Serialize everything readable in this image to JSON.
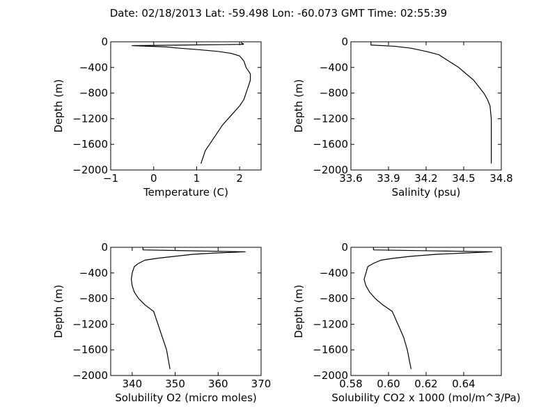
{
  "figure": {
    "suptitle": "Date: 02/18/2013  Lat:  -59.498 Lon:  -60.073  GMT Time: 02:55:39"
  },
  "chart_data": [
    {
      "type": "line",
      "xlabel": "Temperature (C)",
      "ylabel": "Depth (m)",
      "xlim": [
        -1,
        2.5
      ],
      "ylim": [
        -2000,
        0
      ],
      "xticks": [
        -1,
        0,
        1,
        2
      ],
      "xtick_labels": [
        "−1",
        "0",
        "1",
        "2"
      ],
      "yticks": [
        0,
        -400,
        -800,
        -1200,
        -1600,
        -2000
      ],
      "ytick_labels": [
        "0",
        "−400",
        "−800",
        "−1200",
        "−1600",
        "−2000"
      ],
      "grid": false,
      "series": [
        {
          "x": [
            2.05,
            2.05,
            2.09,
            2.09,
            -0.5,
            0.3,
            0.6,
            1.0,
            1.5,
            1.8,
            2.0,
            2.1,
            2.15,
            2.2,
            2.25,
            2.25,
            2.2,
            2.15,
            2.1,
            2.0,
            1.8,
            1.6,
            1.5,
            1.3,
            1.2,
            1.1
          ],
          "y": [
            0,
            -30,
            -30,
            -40,
            -60,
            -80,
            -100,
            -120,
            -150,
            -180,
            -220,
            -300,
            -400,
            -450,
            -500,
            -600,
            -700,
            -800,
            -900,
            -1000,
            -1150,
            -1300,
            -1400,
            -1600,
            -1700,
            -1900
          ]
        }
      ]
    },
    {
      "type": "line",
      "xlabel": "Salinity (psu)",
      "ylabel": "Depth (m)",
      "xlim": [
        33.6,
        34.8
      ],
      "ylim": [
        -2000,
        0
      ],
      "xticks": [
        33.6,
        33.9,
        34.2,
        34.5,
        34.8
      ],
      "xtick_labels": [
        "33.6",
        "33.9",
        "34.2",
        "34.5",
        "34.8"
      ],
      "yticks": [
        0,
        -400,
        -800,
        -1200,
        -1600,
        -2000
      ],
      "ytick_labels": [
        "0",
        "−400",
        "−800",
        "−1200",
        "−1600",
        "−2000"
      ],
      "grid": false,
      "series": [
        {
          "x": [
            33.76,
            33.76,
            33.95,
            34.08,
            34.2,
            34.3,
            34.38,
            34.46,
            34.52,
            34.58,
            34.62,
            34.66,
            34.69,
            34.71,
            34.72,
            34.72,
            34.72
          ],
          "y": [
            0,
            -50,
            -70,
            -100,
            -150,
            -200,
            -300,
            -400,
            -500,
            -600,
            -700,
            -800,
            -900,
            -1000,
            -1200,
            -1500,
            -1900
          ]
        }
      ]
    },
    {
      "type": "line",
      "xlabel": "Solubility O2 (micro moles)",
      "ylabel": "Depth (m)",
      "xlim": [
        335,
        370
      ],
      "ylim": [
        -2000,
        0
      ],
      "xticks": [
        340,
        350,
        360,
        370
      ],
      "xtick_labels": [
        "340",
        "350",
        "360",
        "370"
      ],
      "yticks": [
        0,
        -400,
        -800,
        -1200,
        -1600,
        -2000
      ],
      "ytick_labels": [
        "0",
        "−400",
        "−800",
        "−1200",
        "−1600",
        "−2000"
      ],
      "grid": false,
      "series": [
        {
          "x": [
            342.5,
            342.5,
            366.3,
            359,
            354,
            350,
            346,
            343,
            341.5,
            340.5,
            340,
            339.8,
            340,
            340.5,
            341.5,
            343,
            345,
            346,
            347,
            348,
            348.8
          ],
          "y": [
            0,
            -40,
            -70,
            -90,
            -110,
            -140,
            -170,
            -200,
            -250,
            -300,
            -400,
            -500,
            -600,
            -700,
            -800,
            -900,
            -1000,
            -1200,
            -1400,
            -1600,
            -1900
          ]
        }
      ]
    },
    {
      "type": "line",
      "xlabel": "Solubility CO2 x 1000 (mol/m^3/Pa)",
      "ylabel": "Depth (m)",
      "xlim": [
        0.58,
        0.66
      ],
      "ylim": [
        -2000,
        0
      ],
      "xticks": [
        0.58,
        0.6,
        0.62,
        0.64
      ],
      "xtick_labels": [
        "0.58",
        "0.60",
        "0.62",
        "0.64"
      ],
      "yticks": [
        0,
        -400,
        -800,
        -1200,
        -1600,
        -2000
      ],
      "ytick_labels": [
        "0",
        "−400",
        "−800",
        "−1200",
        "−1600",
        "−2000"
      ],
      "grid": false,
      "series": [
        {
          "x": [
            0.592,
            0.592,
            0.655,
            0.64,
            0.625,
            0.612,
            0.603,
            0.596,
            0.592,
            0.589,
            0.588,
            0.587,
            0.588,
            0.59,
            0.593,
            0.597,
            0.602,
            0.605,
            0.608,
            0.61,
            0.612
          ],
          "y": [
            0,
            -40,
            -70,
            -90,
            -110,
            -140,
            -170,
            -200,
            -250,
            -300,
            -400,
            -500,
            -600,
            -700,
            -800,
            -900,
            -1000,
            -1200,
            -1400,
            -1600,
            -1900
          ]
        }
      ]
    }
  ]
}
